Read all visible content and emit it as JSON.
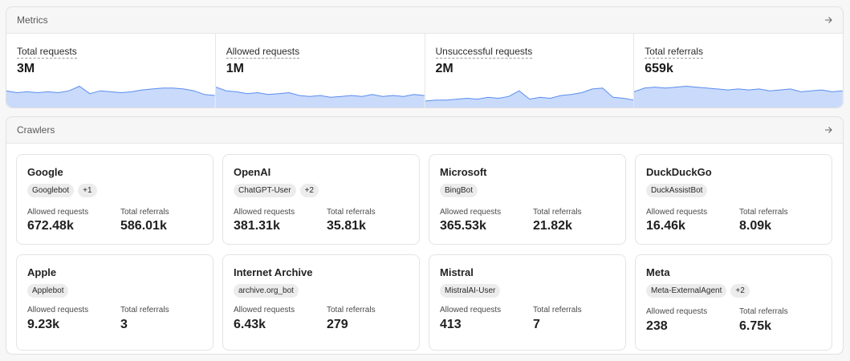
{
  "metrics": {
    "title": "Metrics",
    "items": [
      {
        "label": "Total requests",
        "value": "3M",
        "trend": [
          18,
          16,
          17,
          16,
          17,
          16,
          18,
          23,
          15,
          18,
          17,
          16,
          17,
          19,
          20,
          21,
          21,
          20,
          18,
          14,
          13
        ]
      },
      {
        "label": "Allowed requests",
        "value": "1M",
        "trend": [
          22,
          18,
          17,
          15,
          16,
          14,
          15,
          16,
          13,
          12,
          13,
          11,
          12,
          13,
          12,
          14,
          12,
          13,
          12,
          14,
          13
        ]
      },
      {
        "label": "Unsuccessful requests",
        "value": "2M",
        "trend": [
          7,
          8,
          8,
          9,
          10,
          9,
          11,
          10,
          12,
          18,
          9,
          11,
          10,
          13,
          14,
          16,
          20,
          21,
          11,
          10,
          8
        ]
      },
      {
        "label": "Total referrals",
        "value": "659k",
        "trend": [
          17,
          21,
          22,
          21,
          22,
          23,
          22,
          21,
          20,
          19,
          20,
          19,
          20,
          18,
          19,
          20,
          17,
          18,
          19,
          17,
          18
        ]
      }
    ]
  },
  "crawlers": {
    "title": "Crawlers",
    "stat_labels": {
      "allowed": "Allowed requests",
      "referrals": "Total referrals"
    },
    "cards": [
      {
        "name": "Google",
        "tags": [
          "Googlebot",
          "+1"
        ],
        "allowed": "672.48k",
        "referrals": "586.01k"
      },
      {
        "name": "OpenAI",
        "tags": [
          "ChatGPT-User",
          "+2"
        ],
        "allowed": "381.31k",
        "referrals": "35.81k"
      },
      {
        "name": "Microsoft",
        "tags": [
          "BingBot"
        ],
        "allowed": "365.53k",
        "referrals": "21.82k"
      },
      {
        "name": "DuckDuckGo",
        "tags": [
          "DuckAssistBot"
        ],
        "allowed": "16.46k",
        "referrals": "8.09k"
      },
      {
        "name": "Apple",
        "tags": [
          "Applebot"
        ],
        "allowed": "9.23k",
        "referrals": "3"
      },
      {
        "name": "Internet Archive",
        "tags": [
          "archive.org_bot"
        ],
        "allowed": "6.43k",
        "referrals": "279"
      },
      {
        "name": "Mistral",
        "tags": [
          "MistralAI-User"
        ],
        "allowed": "413",
        "referrals": "7"
      },
      {
        "name": "Meta",
        "tags": [
          "Meta-ExternalAgent",
          "+2"
        ],
        "allowed": "238",
        "referrals": "6.75k"
      }
    ]
  },
  "colors": {
    "sparkline_stroke": "#5b8def",
    "sparkline_fill": "#c9dafb"
  },
  "icons": {
    "panel_link": "arrow-right-icon"
  }
}
